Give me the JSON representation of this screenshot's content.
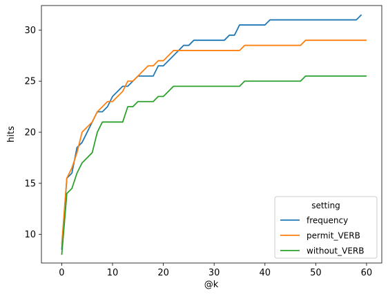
{
  "chart_data": {
    "type": "line",
    "title": "",
    "xlabel": "@k",
    "ylabel": "hits",
    "xlim": [
      -4,
      63
    ],
    "ylim": [
      7.2,
      32.4
    ],
    "xticks": [
      0,
      10,
      20,
      30,
      40,
      50,
      60
    ],
    "yticks": [
      10,
      15,
      20,
      25,
      30
    ],
    "grid": false,
    "legend": {
      "title": "setting",
      "placement": "lower-right"
    },
    "series": [
      {
        "name": "frequency",
        "color": "#1f77b4",
        "points": [
          [
            0,
            8.5
          ],
          [
            1,
            15.5
          ],
          [
            2,
            16
          ],
          [
            3,
            18.5
          ],
          [
            4,
            19
          ],
          [
            5,
            20
          ],
          [
            6,
            21
          ],
          [
            7,
            22
          ],
          [
            8,
            22
          ],
          [
            9,
            22.5
          ],
          [
            10,
            23.5
          ],
          [
            11,
            24
          ],
          [
            12,
            24.5
          ],
          [
            13,
            24.5
          ],
          [
            14,
            25
          ],
          [
            15,
            25.5
          ],
          [
            16,
            25.5
          ],
          [
            17,
            25.5
          ],
          [
            18,
            25.5
          ],
          [
            19,
            26.5
          ],
          [
            20,
            26.5
          ],
          [
            21,
            27
          ],
          [
            22,
            27.5
          ],
          [
            23,
            28
          ],
          [
            24,
            28.5
          ],
          [
            25,
            28.5
          ],
          [
            26,
            29
          ],
          [
            27,
            29
          ],
          [
            28,
            29
          ],
          [
            29,
            29
          ],
          [
            30,
            29
          ],
          [
            31,
            29
          ],
          [
            32,
            29
          ],
          [
            33,
            29.5
          ],
          [
            34,
            29.5
          ],
          [
            35,
            30.5
          ],
          [
            36,
            30.5
          ],
          [
            37,
            30.5
          ],
          [
            38,
            30.5
          ],
          [
            39,
            30.5
          ],
          [
            40,
            30.5
          ],
          [
            41,
            31
          ],
          [
            42,
            31
          ],
          [
            43,
            31
          ],
          [
            44,
            31
          ],
          [
            45,
            31
          ],
          [
            46,
            31
          ],
          [
            47,
            31
          ],
          [
            48,
            31
          ],
          [
            49,
            31
          ],
          [
            50,
            31
          ],
          [
            51,
            31
          ],
          [
            52,
            31
          ],
          [
            53,
            31
          ],
          [
            54,
            31
          ],
          [
            55,
            31
          ],
          [
            56,
            31
          ],
          [
            57,
            31
          ],
          [
            58,
            31
          ],
          [
            59,
            31.5
          ]
        ]
      },
      {
        "name": "permit_VERB",
        "color": "#ff7f0e",
        "points": [
          [
            0,
            9
          ],
          [
            1,
            15.5
          ],
          [
            2,
            16.5
          ],
          [
            3,
            18
          ],
          [
            4,
            20
          ],
          [
            5,
            20.5
          ],
          [
            6,
            21
          ],
          [
            7,
            22
          ],
          [
            8,
            22.5
          ],
          [
            9,
            23
          ],
          [
            10,
            23
          ],
          [
            11,
            23.5
          ],
          [
            12,
            24
          ],
          [
            13,
            25
          ],
          [
            14,
            25
          ],
          [
            15,
            25.5
          ],
          [
            16,
            26
          ],
          [
            17,
            26.5
          ],
          [
            18,
            26.5
          ],
          [
            19,
            27
          ],
          [
            20,
            27
          ],
          [
            21,
            27.5
          ],
          [
            22,
            28
          ],
          [
            23,
            28
          ],
          [
            24,
            28
          ],
          [
            25,
            28
          ],
          [
            26,
            28
          ],
          [
            27,
            28
          ],
          [
            28,
            28
          ],
          [
            29,
            28
          ],
          [
            30,
            28
          ],
          [
            31,
            28
          ],
          [
            32,
            28
          ],
          [
            33,
            28
          ],
          [
            34,
            28
          ],
          [
            35,
            28
          ],
          [
            36,
            28.5
          ],
          [
            37,
            28.5
          ],
          [
            38,
            28.5
          ],
          [
            39,
            28.5
          ],
          [
            40,
            28.5
          ],
          [
            41,
            28.5
          ],
          [
            42,
            28.5
          ],
          [
            43,
            28.5
          ],
          [
            44,
            28.5
          ],
          [
            45,
            28.5
          ],
          [
            46,
            28.5
          ],
          [
            47,
            28.5
          ],
          [
            48,
            29
          ],
          [
            49,
            29
          ],
          [
            50,
            29
          ],
          [
            51,
            29
          ],
          [
            52,
            29
          ],
          [
            53,
            29
          ],
          [
            54,
            29
          ],
          [
            55,
            29
          ],
          [
            56,
            29
          ],
          [
            57,
            29
          ],
          [
            58,
            29
          ],
          [
            59,
            29
          ],
          [
            60,
            29
          ]
        ]
      },
      {
        "name": "without_VERB",
        "color": "#2ca02c",
        "points": [
          [
            0,
            8
          ],
          [
            1,
            14
          ],
          [
            2,
            14.5
          ],
          [
            3,
            16
          ],
          [
            4,
            17
          ],
          [
            5,
            17.5
          ],
          [
            6,
            18
          ],
          [
            7,
            20
          ],
          [
            8,
            21
          ],
          [
            9,
            21
          ],
          [
            10,
            21
          ],
          [
            11,
            21
          ],
          [
            12,
            21
          ],
          [
            13,
            22.5
          ],
          [
            14,
            22.5
          ],
          [
            15,
            23
          ],
          [
            16,
            23
          ],
          [
            17,
            23
          ],
          [
            18,
            23
          ],
          [
            19,
            23.5
          ],
          [
            20,
            23.5
          ],
          [
            21,
            24
          ],
          [
            22,
            24.5
          ],
          [
            23,
            24.5
          ],
          [
            24,
            24.5
          ],
          [
            25,
            24.5
          ],
          [
            26,
            24.5
          ],
          [
            27,
            24.5
          ],
          [
            28,
            24.5
          ],
          [
            29,
            24.5
          ],
          [
            30,
            24.5
          ],
          [
            31,
            24.5
          ],
          [
            32,
            24.5
          ],
          [
            33,
            24.5
          ],
          [
            34,
            24.5
          ],
          [
            35,
            24.5
          ],
          [
            36,
            25
          ],
          [
            37,
            25
          ],
          [
            38,
            25
          ],
          [
            39,
            25
          ],
          [
            40,
            25
          ],
          [
            41,
            25
          ],
          [
            42,
            25
          ],
          [
            43,
            25
          ],
          [
            44,
            25
          ],
          [
            45,
            25
          ],
          [
            46,
            25
          ],
          [
            47,
            25
          ],
          [
            48,
            25.5
          ],
          [
            49,
            25.5
          ],
          [
            50,
            25.5
          ],
          [
            51,
            25.5
          ],
          [
            52,
            25.5
          ],
          [
            53,
            25.5
          ],
          [
            54,
            25.5
          ],
          [
            55,
            25.5
          ],
          [
            56,
            25.5
          ],
          [
            57,
            25.5
          ],
          [
            58,
            25.5
          ],
          [
            59,
            25.5
          ],
          [
            60,
            25.5
          ]
        ]
      }
    ]
  }
}
